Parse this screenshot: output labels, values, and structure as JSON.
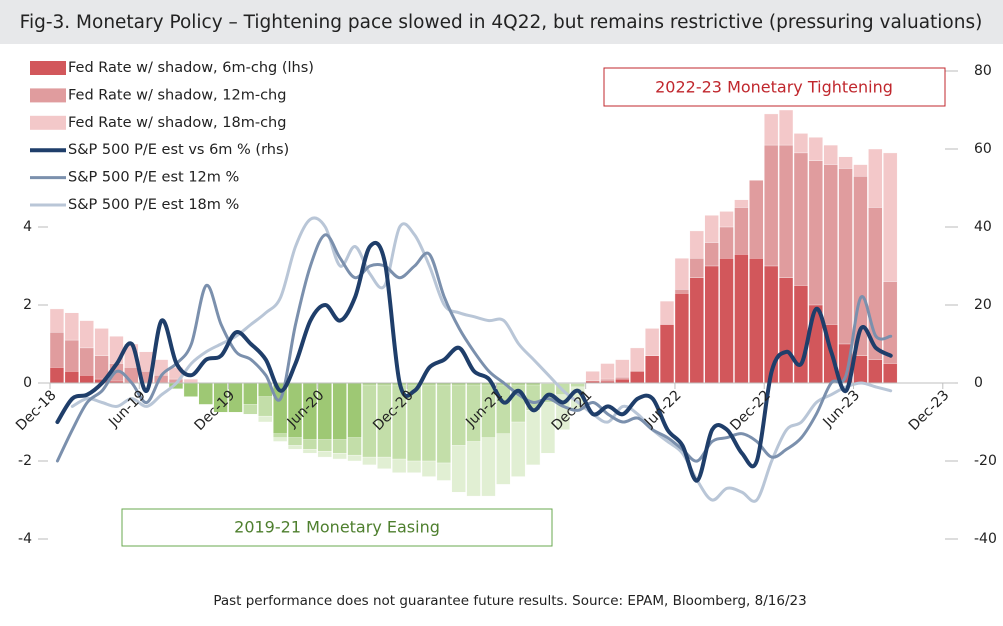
{
  "chart_data": {
    "type": "combo",
    "title": "Fig-3. Monetary Policy – Tightening pace slowed in 4Q22, but remains restrictive (pressuring valuations)",
    "footnote": "Past performance does not guarantee future results.  Source: EPAM, Bloomberg, 8/16/23",
    "annotations": [
      {
        "text": "2022-23 Monetary Tightening",
        "color": "#c0272d"
      },
      {
        "text": "2019-21 Monetary Easing",
        "color": "#4e7f2e"
      }
    ],
    "categories": [
      "Dec-18",
      null,
      null,
      null,
      null,
      null,
      "Jun-19",
      null,
      null,
      null,
      null,
      null,
      "Dec-19",
      null,
      null,
      null,
      null,
      null,
      "Jun-20",
      null,
      null,
      null,
      null,
      null,
      "Dec-20",
      null,
      null,
      null,
      null,
      null,
      "Jun-21",
      null,
      null,
      null,
      null,
      null,
      "Dec-21",
      null,
      null,
      null,
      null,
      null,
      "Jun-22",
      null,
      null,
      null,
      null,
      null,
      "Dec-22",
      null,
      null,
      null,
      null,
      null,
      "Jun-23",
      null,
      null,
      null,
      null,
      null,
      "Dec-23"
    ],
    "ylim": [
      -4.4,
      8.4
    ],
    "yticks": [
      -4,
      -2,
      0,
      2,
      4
    ],
    "y2lim": [
      -44,
      84
    ],
    "y2ticks": [
      -40,
      -20,
      0,
      20,
      40,
      60,
      80
    ],
    "legend": "upper left",
    "series": [
      {
        "name": "Fed Rate w/ shadow, 18m-chg",
        "type": "bar",
        "axis": "y",
        "color": "#f3c8c9",
        "negative_color": "#e1efd3",
        "values": [
          1.9,
          1.8,
          1.6,
          1.4,
          1.2,
          1.0,
          0.8,
          0.6,
          0.4,
          0.1,
          -0.2,
          -0.4,
          -0.6,
          -0.8,
          -1.0,
          -1.5,
          -1.7,
          -1.8,
          -1.9,
          -1.95,
          -2.0,
          -2.1,
          -2.2,
          -2.3,
          -2.3,
          -2.4,
          -2.5,
          -2.8,
          -2.9,
          -2.9,
          -2.6,
          -2.4,
          -2.1,
          -1.8,
          -1.2,
          -0.7,
          0.3,
          0.5,
          0.6,
          0.9,
          1.4,
          2.1,
          3.2,
          3.9,
          4.3,
          4.4,
          4.7,
          5.2,
          6.9,
          7.0,
          6.4,
          6.3,
          6.1,
          5.8,
          5.6,
          6.0,
          5.9,
          null,
          null,
          null,
          null
        ]
      },
      {
        "name": "Fed Rate w/ shadow, 12m-chg",
        "type": "bar",
        "axis": "y",
        "color": "#e09c9e",
        "negative_color": "#c3dea9",
        "values": [
          1.3,
          1.1,
          0.9,
          0.7,
          0.5,
          0.4,
          0.3,
          0.2,
          0.1,
          -0.1,
          -0.35,
          -0.6,
          -0.75,
          -0.8,
          -0.85,
          -1.4,
          -1.6,
          -1.7,
          -1.75,
          -1.8,
          -1.85,
          -1.9,
          -1.9,
          -1.95,
          -2.0,
          -2.0,
          -2.05,
          -1.6,
          -1.5,
          -1.4,
          -1.3,
          -1.0,
          -0.7,
          -0.5,
          -0.3,
          -0.1,
          0.05,
          0.1,
          0.15,
          0.3,
          0.7,
          1.5,
          2.4,
          3.2,
          3.6,
          4.0,
          4.5,
          5.2,
          6.1,
          6.1,
          5.9,
          5.7,
          5.6,
          5.5,
          5.3,
          4.5,
          2.6,
          null,
          null,
          null,
          null
        ]
      },
      {
        "name": "Fed Rate w/ shadow, 6m-chg (lhs)",
        "type": "bar",
        "axis": "y",
        "color": "#d2575b",
        "negative_color": "#9ec874",
        "values": [
          0.4,
          0.3,
          0.2,
          0.1,
          0.05,
          0,
          0,
          0,
          -0.15,
          -0.35,
          -0.55,
          -0.75,
          -0.75,
          -0.55,
          -0.35,
          -1.3,
          -1.4,
          -1.45,
          -1.45,
          -1.45,
          -1.4,
          -0.05,
          -0.05,
          -0.05,
          -0.05,
          -0.05,
          -0.05,
          -0.05,
          -0.05,
          -0.05,
          -0.05,
          -0.05,
          -0.05,
          0,
          0,
          0,
          0.05,
          0.05,
          0.1,
          0.3,
          0.7,
          1.5,
          2.3,
          2.7,
          3.0,
          3.2,
          3.3,
          3.2,
          3.0,
          2.7,
          2.5,
          2.0,
          1.5,
          1.0,
          0.7,
          0.6,
          0.5,
          null,
          null,
          null,
          null
        ]
      },
      {
        "name": "S&P 500 P/E est 18m %",
        "type": "line",
        "axis": "y2",
        "color": "#b9c6d7",
        "width": 3,
        "values": [
          null,
          -6,
          -4,
          -5,
          -6,
          -4,
          -6,
          -3,
          0,
          5,
          8,
          10,
          12,
          15,
          18,
          22,
          35,
          42,
          40,
          30,
          35,
          28,
          25,
          40,
          38,
          30,
          20,
          18,
          17,
          16,
          16,
          10,
          6,
          2,
          -2,
          -5,
          -8,
          -10,
          -6,
          -8,
          -12,
          -15,
          -18,
          -25,
          -30,
          -27,
          -28,
          -30,
          -20,
          -12,
          -10,
          -5,
          -3,
          -1,
          0,
          -1,
          -2,
          null,
          null,
          null,
          null
        ]
      },
      {
        "name": "S&P 500 P/E est 12m %",
        "type": "line",
        "axis": "y2",
        "color": "#7b90ad",
        "width": 3,
        "values": [
          -20,
          -12,
          -5,
          -2,
          3,
          0,
          -5,
          2,
          5,
          10,
          25,
          15,
          8,
          6,
          2,
          -4,
          15,
          30,
          38,
          32,
          27,
          30,
          30,
          27,
          30,
          33,
          22,
          14,
          8,
          3,
          0,
          -3,
          -5,
          -4,
          -6,
          -7,
          -5,
          -8,
          -10,
          -9,
          -12,
          -14,
          -17,
          -20,
          -15,
          -14,
          -13,
          -15,
          -19,
          -17,
          -14,
          -8,
          0,
          2,
          22,
          12,
          12,
          null,
          null,
          null,
          null
        ]
      },
      {
        "name": "S&P 500 P/E est vs 6m % (rhs)",
        "type": "line",
        "axis": "y2",
        "color": "#1f3e6a",
        "width": 4,
        "values": [
          -10,
          -4,
          -3,
          0,
          5,
          10,
          -2,
          16,
          5,
          2,
          6,
          7,
          13,
          10,
          6,
          -2,
          5,
          16,
          20,
          16,
          22,
          35,
          31,
          0,
          -2,
          4,
          6,
          9,
          3,
          1,
          -5,
          -2,
          -7,
          -3,
          -5,
          -2,
          -8,
          -6,
          -8,
          -4,
          -4,
          -12,
          -16,
          -25,
          -12,
          -12,
          -18,
          -20,
          3,
          8,
          5,
          19,
          8,
          -2,
          14,
          9,
          7,
          null,
          null,
          null,
          null
        ]
      }
    ]
  }
}
